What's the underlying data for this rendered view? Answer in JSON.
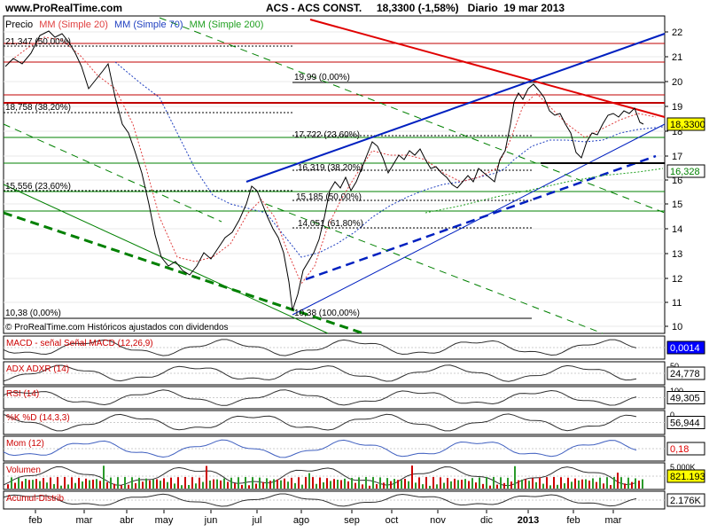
{
  "header": {
    "site": "www.ProRealTime.com",
    "ticker": "ACS - ACS CONST.",
    "price": "18,3300 (-1,58%)",
    "period": "Diario",
    "date": "19 mar 2013"
  },
  "main_panel": {
    "legend": {
      "price": "Precio",
      "mm20": "MM (Simple 20)",
      "mm70": "MM (Simple 70)",
      "mm200": "MM (Simple 200)"
    },
    "disclaimer": "© ProRealTime.com Históricos ajustados con dividendos",
    "y_ticks": [
      "22",
      "21",
      "20",
      "19",
      "18",
      "17",
      "16",
      "15",
      "14",
      "13",
      "12",
      "11",
      "10"
    ],
    "last_price_badge": "18,3300",
    "ma_badge": "16,328",
    "fib_labels": [
      "21,347 (50,00%)",
      "18,758 (38,20%)",
      "15,556 (23,60%)",
      "10,38 (0,00%)",
      "19,99 (0,00%)",
      "17,722 (23,60%)",
      "16,319 (38,20%)",
      "15,185 (50,00%)",
      "14,051 (61,80%)",
      "10,38 (100,00%)"
    ],
    "colors": {
      "price": "#000000",
      "mm20": "#e04040",
      "mm70": "#2040c0",
      "mm200": "#20a020",
      "trend_red": "#e00000",
      "channel_blue": "#0020c0",
      "channel_green": "#008000"
    }
  },
  "indicators": [
    {
      "label": "MACD - señal Señal MACD (12,26,9)",
      "value": "0,0014",
      "value_color": "#ffffff",
      "badge_color": "#0000ff"
    },
    {
      "label": "ADX ADXR (14)",
      "value": "24,778",
      "extra_tick": "50",
      "badge_color": "#ffffff"
    },
    {
      "label": "RSI (14)",
      "value": "49,305",
      "extra_tick": "100",
      "badge_color": "#ffffff"
    },
    {
      "label": "%K %D (14,3,3)",
      "value": "56,944",
      "extra_tick": "0",
      "badge_color": "#ffffff"
    },
    {
      "label": "Mom (12)",
      "value": "0,18",
      "value_color": "#e00000",
      "badge_color": "#ffffff"
    },
    {
      "label": "Volumen",
      "value": "821.193",
      "extra_tick": "5.000K",
      "badge_color": "#ffff00"
    },
    {
      "label": "Acumul-Distrib",
      "value": "2.176K",
      "badge_color": "#ffffff"
    }
  ],
  "x_axis": [
    "feb",
    "mar",
    "abr",
    "may",
    "jun",
    "jul",
    "ago",
    "sep",
    "oct",
    "nov",
    "dic",
    "2013",
    "feb",
    "mar"
  ]
}
